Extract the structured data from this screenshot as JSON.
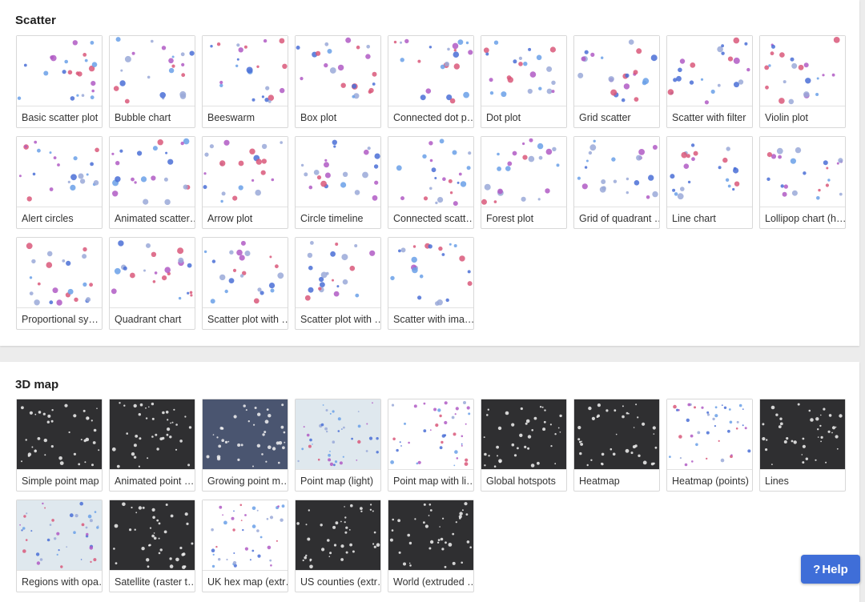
{
  "sections": [
    {
      "title": "Scatter",
      "items": [
        "Basic scatter plot",
        "Bubble chart",
        "Beeswarm",
        "Box plot",
        "Connected dot p…",
        "Dot plot",
        "Grid scatter",
        "Scatter with filter",
        "Violin plot",
        "Alert circles",
        "Animated scatter…",
        "Arrow plot",
        "Circle timeline",
        "Connected scatt…",
        "Forest plot",
        "Grid of quadrant …",
        "Line chart",
        "Lollipop chart (h…",
        "Proportional sy…",
        "Quadrant chart",
        "Scatter plot with …",
        "Scatter plot with …",
        "Scatter with ima…"
      ]
    },
    {
      "title": "3D map",
      "items": [
        "Simple point map",
        "Animated point …",
        "Growing point m…",
        "Point map (light)",
        "Point map with li…",
        "Global hotspots",
        "Heatmap",
        "Heatmap (points)",
        "Lines",
        "Regions with opa…",
        "Satellite (raster t…",
        "UK hex map (extr…",
        "US counties (extr…",
        "World (extruded …"
      ]
    }
  ],
  "help_button": {
    "icon": "?",
    "label": "Help"
  }
}
